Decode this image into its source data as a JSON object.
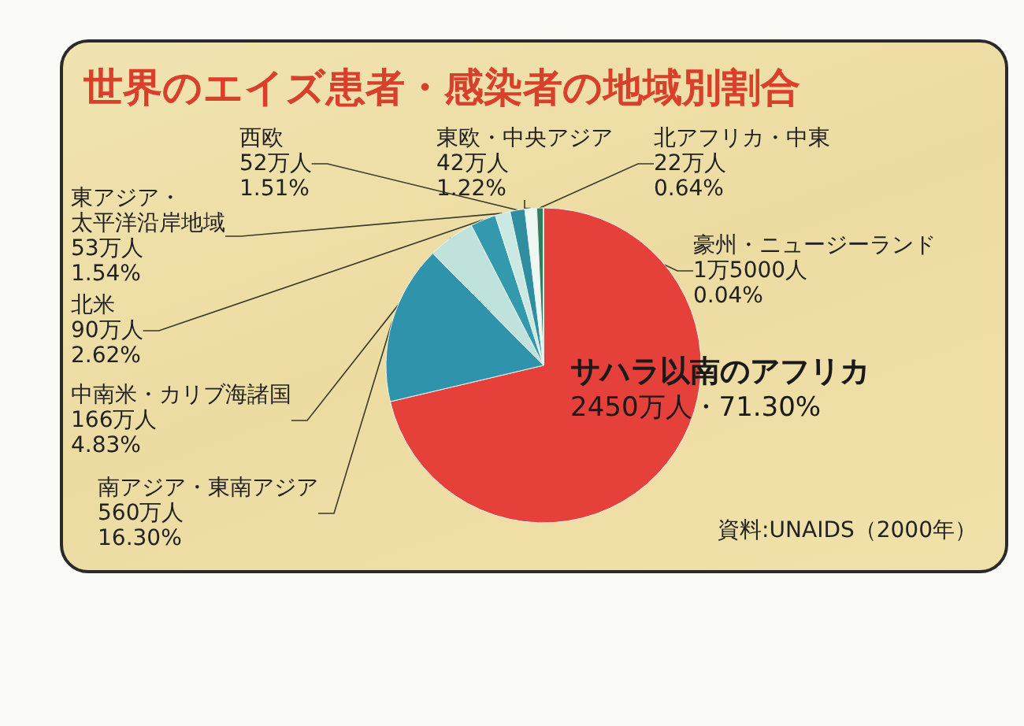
{
  "chart_data": {
    "type": "pie",
    "title": "世界のエイズ患者・感染者の地域別割合",
    "categories": [
      "サハラ以南のアフリカ",
      "南アジア・東南アジア",
      "中南米・カリブ海諸国",
      "北米",
      "東アジア・太平洋沿岸地域",
      "西欧",
      "東欧・中央アジア",
      "北アフリカ・中東",
      "豪州・ニュージーランド"
    ],
    "values": [
      71.3,
      16.3,
      4.83,
      2.62,
      1.54,
      1.51,
      1.22,
      0.64,
      0.04
    ],
    "value_labels": [
      "2450万人・71.30%",
      "560万人\n16.30%",
      "166万人\n4.83%",
      "90万人\n2.62%",
      "53万人\n1.54%",
      "52万人\n1.51%",
      "42万人\n1.22%",
      "22万人\n0.64%",
      "1万5000人\n0.04%"
    ],
    "colors": [
      "#e5403a",
      "#2e93ab",
      "#bfe3dc",
      "#3399ad",
      "#c9e9e2",
      "#2f8fa0",
      "#eef7f2",
      "#2f7d5f",
      "#1f6b4a"
    ],
    "annotations": [
      "資料:UNAIDS（2000年）"
    ]
  }
}
